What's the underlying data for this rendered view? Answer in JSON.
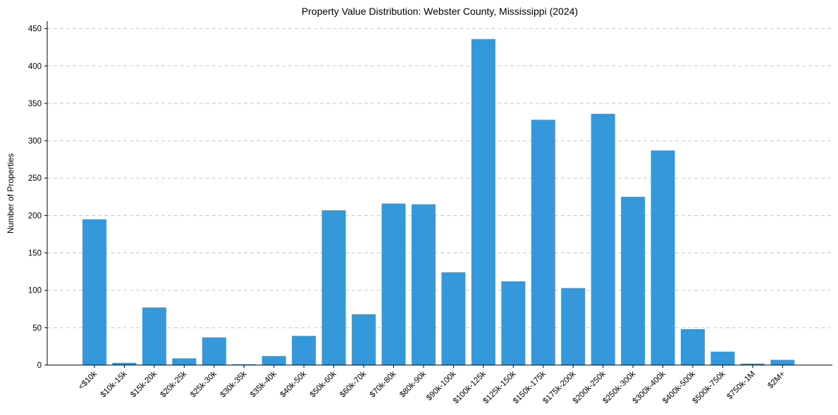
{
  "chart_data": {
    "type": "bar",
    "title": "Property Value Distribution: Webster County, Mississippi (2024)",
    "xlabel": "",
    "ylabel": "Number of Properties",
    "ylim": [
      0,
      460
    ],
    "yticks": [
      0,
      50,
      100,
      150,
      200,
      250,
      300,
      350,
      400,
      450
    ],
    "grid": "y-dashed",
    "bar_color": "#3498db",
    "categories": [
      "<$10k",
      "$10k-15k",
      "$15k-20k",
      "$20k-25k",
      "$25k-30k",
      "$30k-35k",
      "$35k-40k",
      "$40k-50k",
      "$50k-60k",
      "$60k-70k",
      "$70k-80k",
      "$80k-90k",
      "$90k-100k",
      "$100k-125k",
      "$125k-150k",
      "$150k-175k",
      "$175k-200k",
      "$200k-250k",
      "$250k-300k",
      "$300k-400k",
      "$400k-500k",
      "$500k-750k",
      "$750k-1M",
      "$2M+"
    ],
    "values": [
      195,
      3,
      77,
      9,
      37,
      1,
      12,
      39,
      207,
      68,
      216,
      215,
      124,
      436,
      112,
      328,
      103,
      336,
      225,
      287,
      48,
      18,
      2,
      7
    ]
  }
}
